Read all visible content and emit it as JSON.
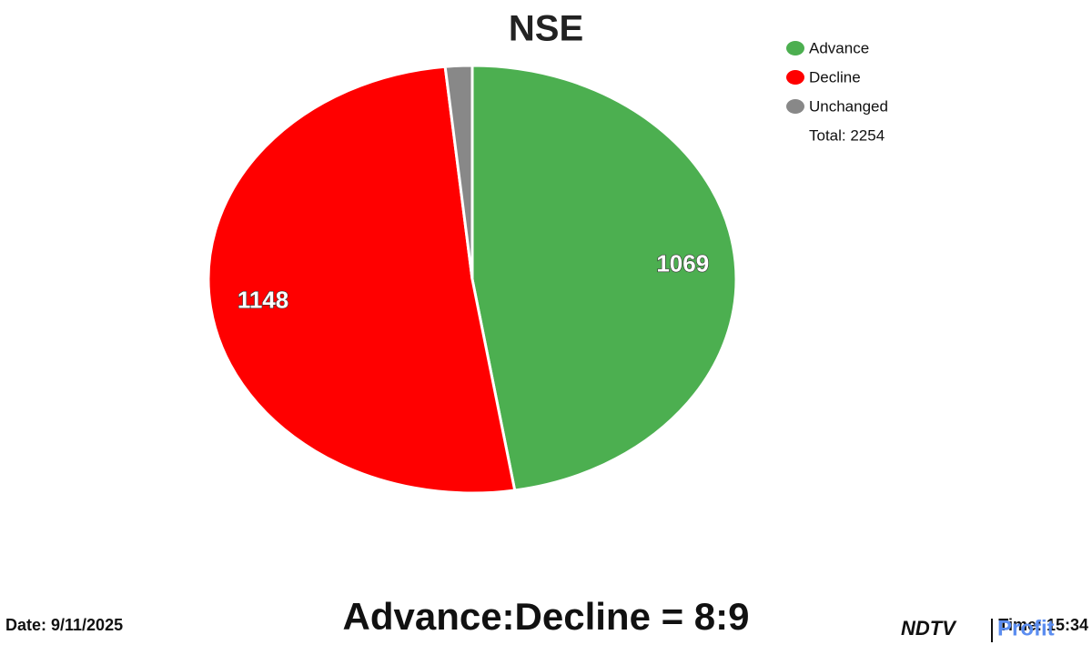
{
  "chart_data": {
    "type": "pie",
    "title": "NSE",
    "categories": [
      "Advance",
      "Decline",
      "Unchanged"
    ],
    "values": [
      1069,
      1148,
      37
    ],
    "colors": [
      "#4caf50",
      "#ff0000",
      "#888888"
    ],
    "labeled": [
      true,
      true,
      false
    ],
    "legend": "top-right",
    "total_label": "Total: 2254",
    "ratio_label": "Advance:Decline = 8:9",
    "date_label": "Date: 9/11/2025",
    "time_label": "Time: 15:34"
  },
  "logo": {
    "left": "NDTV",
    "right": "Profit"
  }
}
